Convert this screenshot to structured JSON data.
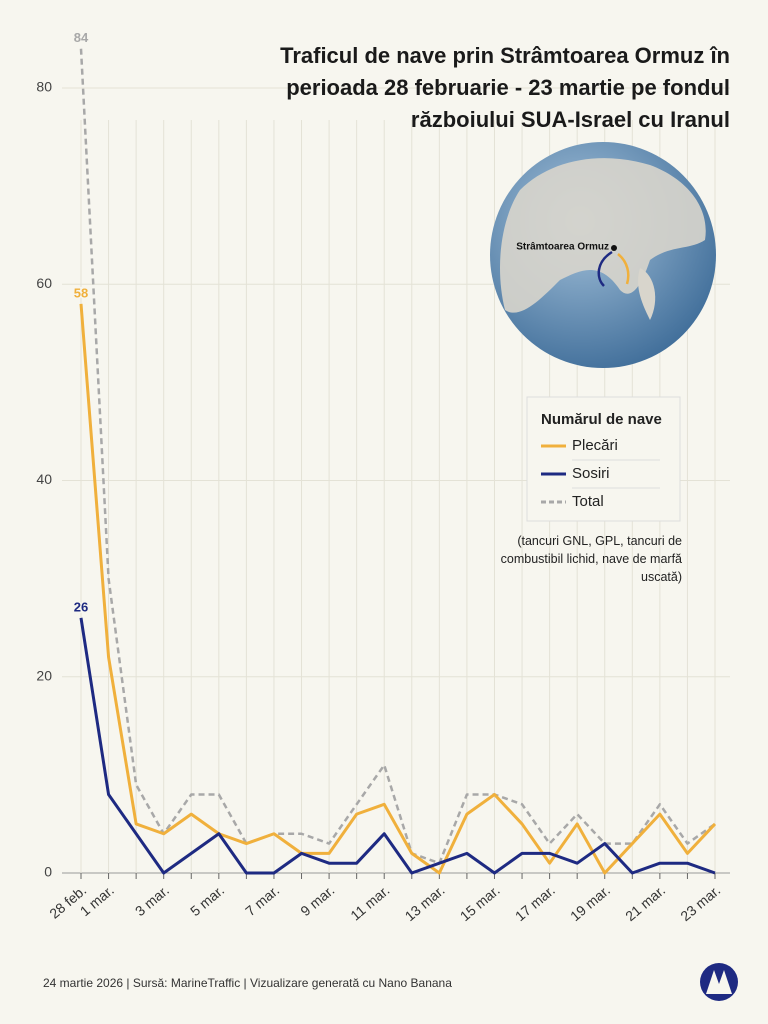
{
  "chart_data": {
    "type": "line",
    "title": "Traficul de nave prin Strâmtoarea Ormuz în perioada 28 februarie - 23 martie pe fondul războiului SUA-Israel cu Iranul",
    "categories": [
      "28 feb.",
      "1 mar.",
      null,
      "3 mar.",
      null,
      "5 mar.",
      null,
      "7 mar.",
      null,
      "9 mar.",
      null,
      "11 mar.",
      null,
      "13 mar.",
      null,
      "15 mar.",
      null,
      "17 mar.",
      null,
      "19 mar.",
      null,
      "21 mar.",
      null,
      "23 mar."
    ],
    "series": [
      {
        "name": "Plecări",
        "color": "#f0b03c",
        "dashed": false,
        "values": [
          58,
          22,
          5,
          4,
          6,
          4,
          3,
          4,
          2,
          2,
          6,
          7,
          2,
          0,
          6,
          8,
          5,
          1,
          5,
          0,
          3,
          6,
          2,
          5
        ]
      },
      {
        "name": "Sosiri",
        "color": "#1e2a82",
        "dashed": false,
        "values": [
          26,
          8,
          4,
          0,
          2,
          4,
          0,
          0,
          2,
          1,
          1,
          4,
          0,
          1,
          2,
          0,
          2,
          2,
          1,
          3,
          0,
          1,
          1,
          0
        ]
      },
      {
        "name": "Total",
        "color": "#a8a8a8",
        "dashed": true,
        "values": [
          84,
          30,
          9,
          4,
          8,
          8,
          3,
          4,
          4,
          3,
          7,
          11,
          2,
          1,
          8,
          8,
          7,
          3,
          6,
          3,
          3,
          7,
          3,
          5
        ]
      }
    ],
    "ylim": [
      0,
      86
    ],
    "yticks": [
      0,
      20,
      40,
      60,
      80
    ],
    "grid": true,
    "legend_title": "Numărul de nave",
    "note": "(tancuri GNL, GPL, tancuri de combustibil lichid, nave de marfă uscată)",
    "map_label": "Strâmtoarea Ormuz",
    "footer": "24 martie 2026 | Sursă: MarineTraffic | Vizualizare generată cu Nano Banana"
  }
}
